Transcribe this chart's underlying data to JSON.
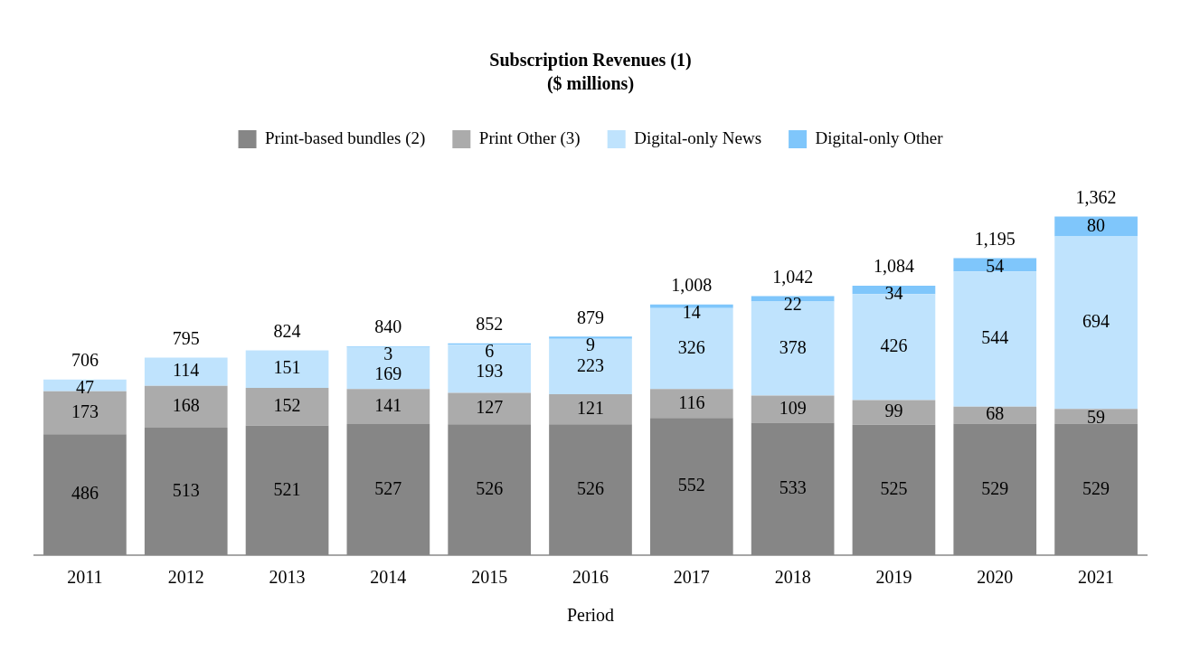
{
  "chart_data": {
    "type": "bar",
    "title": "Subscription Revenues (1)",
    "subtitle": "($ millions)",
    "xlabel": "Period",
    "stacked": true,
    "legend": "top",
    "grid": false,
    "categories": [
      "2011",
      "2012",
      "2013",
      "2014",
      "2015",
      "2016",
      "2017",
      "2018",
      "2019",
      "2020",
      "2021"
    ],
    "series": [
      {
        "name": "Print-based bundles (2)",
        "color": "#868686",
        "values": [
          486,
          513,
          521,
          527,
          526,
          526,
          552,
          533,
          525,
          529,
          529
        ],
        "value_labels": [
          "486",
          "513",
          "521",
          "527",
          "526",
          "526",
          "552",
          "533",
          "525",
          "529",
          "529"
        ]
      },
      {
        "name": "Print Other (3)",
        "color": "#ababab",
        "values": [
          173,
          168,
          152,
          141,
          127,
          121,
          116,
          109,
          99,
          68,
          59
        ],
        "value_labels": [
          "173",
          "168",
          "152",
          "141",
          "127",
          "121",
          "116",
          "109",
          "99",
          "68",
          "59"
        ]
      },
      {
        "name": "Digital-only News",
        "color": "#bfe3fd",
        "values": [
          47,
          114,
          151,
          169,
          193,
          223,
          326,
          378,
          426,
          544,
          694
        ],
        "value_labels": [
          "47",
          "114",
          "151",
          "169",
          "193",
          "223",
          "326",
          "378",
          "426",
          "544",
          "694"
        ]
      },
      {
        "name": "Digital-only Other",
        "color": "#7fc6fb",
        "values": [
          null,
          null,
          null,
          3,
          6,
          9,
          14,
          22,
          34,
          54,
          80
        ],
        "value_labels": [
          null,
          null,
          null,
          "3",
          "6",
          "9",
          "14",
          "22",
          "34",
          "54",
          "80"
        ]
      }
    ],
    "totals": [
      "706",
      "795",
      "824",
      "840",
      "852",
      "879",
      "1,008",
      "1,042",
      "1,084",
      "1,195",
      "1,362"
    ]
  }
}
